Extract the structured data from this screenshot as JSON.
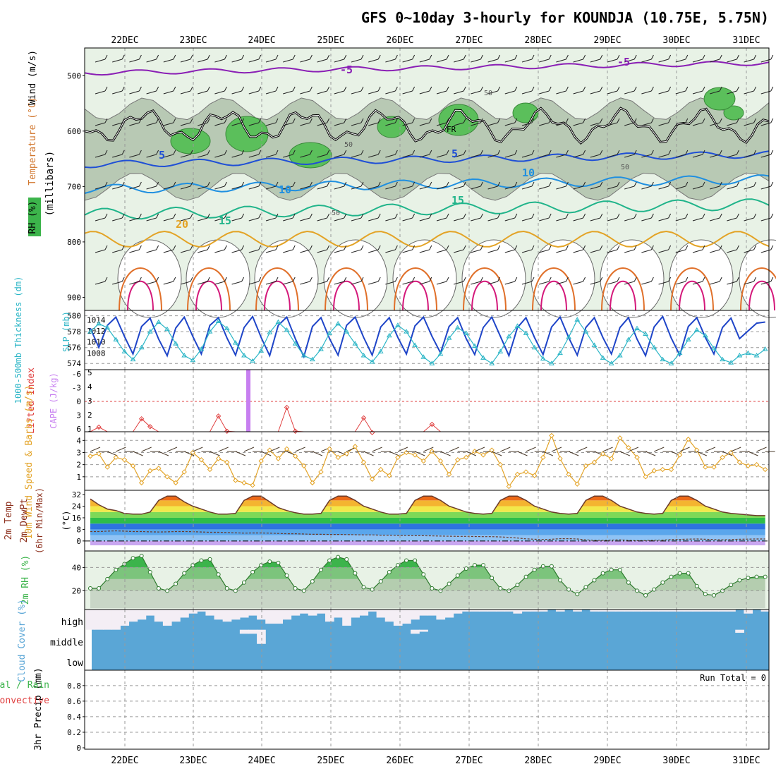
{
  "title": "GFS 0~10day 3-hourly for KOUNDJA (10.75E, 5.75N)",
  "dates": [
    "22DEC",
    "23DEC",
    "24DEC",
    "25DEC",
    "26DEC",
    "27DEC",
    "28DEC",
    "29DEC",
    "30DEC",
    "31DEC"
  ],
  "colors": {
    "frame": "#000000",
    "grid": "#888888",
    "sky": "#5aa6d6",
    "green": "#3cb44b"
  },
  "chart_data": [
    {
      "type": "line",
      "panel": "upper-air cross-section",
      "ylabel_left": "RH (%)   Temperature (°C)Wind (m/s)",
      "ylabel_mid": "(millibars)",
      "yticks": [
        500,
        600,
        700,
        800,
        900
      ],
      "ylim": [
        1000,
        450
      ],
      "isotherm_labels": [
        "-5",
        "-5",
        "5",
        "5",
        "10",
        "10",
        "15",
        "15",
        "20"
      ],
      "fr_label": "FR",
      "rh_labels": [
        "50",
        "50",
        "50",
        "50"
      ]
    },
    {
      "type": "line",
      "panel": "thickness-slp",
      "ylabel_left": "1000-500mb Thickness (dm)",
      "ylabel_right": "SLP (mb)",
      "yticks_left": [
        574,
        576,
        578,
        580
      ],
      "yticks_right": [
        1008,
        1010,
        1012,
        1014
      ],
      "series": [
        {
          "name": "SLP (mb)",
          "values": [
            1012.5,
            1009.0,
            1013.0,
            1014.5,
            1011.0,
            1007.8,
            1012.8,
            1014.3,
            1010.5,
            1007.5,
            1012.5,
            1014.5,
            1011.0,
            1007.8,
            1013.0,
            1014.4,
            1010.7,
            1007.6,
            1012.6,
            1014.6,
            1010.8,
            1007.5,
            1013.0,
            1014.5,
            1010.6,
            1007.3,
            1012.8,
            1014.4,
            1010.6,
            1007.6,
            1013.0,
            1014.5,
            1010.8,
            1007.6,
            1012.7,
            1014.4,
            1010.8,
            1007.8,
            1012.9,
            1014.5,
            1011.0,
            1008.0,
            1012.8,
            1014.4,
            1010.6,
            1007.7,
            1012.6,
            1014.5,
            1011.0,
            1007.5,
            1012.6,
            1014.4,
            1010.8,
            1007.7,
            1012.7,
            1014.5,
            1010.8,
            1007.6,
            1012.6,
            1014.4,
            1010.8,
            1007.8,
            1012.6,
            1014.4,
            1010.5,
            1007.5,
            1012.7,
            1014.6,
            1010.7,
            1007.6,
            1012.8,
            1014.4,
            1010.8,
            1007.8,
            1012.6,
            1014.3,
            1010.6,
            1012.0,
            1013.4,
            1013.6
          ]
        },
        {
          "name": "1000-500mb Thickness (dm)",
          "values": [
            578.0,
            579.0,
            578.5,
            577.0,
            575.5,
            574.5,
            576.0,
            578.0,
            579.2,
            578.3,
            576.5,
            575.0,
            574.4,
            575.8,
            578.0,
            579.3,
            578.4,
            576.6,
            575.0,
            574.3,
            575.6,
            577.9,
            579.2,
            578.2,
            576.5,
            575.0,
            574.5,
            575.8,
            577.8,
            579.0,
            578.0,
            576.5,
            575.0,
            574.2,
            575.5,
            577.5,
            578.8,
            578.0,
            576.3,
            574.8,
            574.0,
            575.2,
            577.2,
            578.5,
            577.8,
            576.2,
            574.7,
            574.0,
            575.5,
            577.4,
            578.7,
            577.8,
            576.0,
            574.6,
            574.0,
            575.3,
            577.3,
            579.5,
            578.0,
            576.3,
            574.7,
            574.0,
            575.0,
            577.0,
            578.4,
            577.7,
            576.0,
            574.5,
            574.0,
            575.3,
            577.0,
            578.2,
            577.5,
            575.9,
            574.5,
            574.1,
            575.0,
            575.3,
            575.0,
            575.8
          ]
        }
      ]
    },
    {
      "type": "bar",
      "panel": "cape-li",
      "ylabel_left": "Lifted Index",
      "ylabel_right": "CAPE (J/kg)",
      "yticks_left": [
        "-6",
        "-3",
        "0",
        "3",
        "6"
      ],
      "yticks_right": [
        "1",
        "2",
        "3",
        "4",
        "5"
      ],
      "cape_bar": {
        "x_step": 18,
        "value": 5.2
      },
      "series": [
        {
          "name": "Lifted Index",
          "values": [
            7,
            5.6,
            7,
            7,
            7,
            7,
            3.8,
            5.5,
            7,
            7,
            7,
            7,
            7,
            7,
            7,
            3.2,
            6.5,
            7,
            7,
            7,
            7,
            7,
            7,
            1.3,
            6.5,
            7,
            7,
            7,
            7,
            7,
            7,
            7,
            3.6,
            6.8,
            7,
            7,
            7,
            7,
            7,
            7,
            5.0,
            7,
            7,
            7,
            7,
            7,
            7,
            7,
            7,
            7,
            7,
            7,
            7,
            7,
            7,
            7,
            7,
            7,
            7,
            7,
            7,
            7,
            7,
            7,
            7,
            7,
            7,
            7,
            7,
            7,
            7,
            7,
            7,
            7,
            7,
            7,
            7,
            7,
            7,
            7
          ]
        }
      ]
    },
    {
      "type": "line",
      "panel": "wind10m",
      "ylabel_left": "10m Wind Speed & Barbs (m/s)",
      "yticks": [
        1,
        2,
        3,
        4
      ],
      "series": [
        {
          "name": "10m Wind Speed (m/s)",
          "values": [
            2.7,
            2.9,
            1.8,
            2.6,
            2.4,
            1.9,
            0.5,
            1.5,
            1.7,
            1.0,
            0.5,
            1.4,
            3.0,
            2.4,
            1.6,
            2.5,
            2.2,
            0.7,
            0.5,
            0.3,
            2.3,
            3.2,
            2.5,
            3.3,
            2.7,
            1.9,
            0.5,
            1.4,
            3.3,
            2.6,
            2.9,
            3.5,
            2.2,
            0.8,
            1.6,
            1.1,
            2.6,
            3.0,
            2.8,
            2.3,
            3.1,
            2.3,
            1.2,
            2.4,
            2.6,
            3.1,
            2.8,
            3.2,
            2.0,
            0.2,
            1.2,
            1.4,
            1.1,
            2.6,
            4.4,
            2.5,
            1.2,
            0.4,
            1.9,
            2.2,
            2.9,
            2.5,
            4.2,
            3.4,
            2.6,
            1.0,
            1.5,
            1.6,
            1.6,
            2.8,
            4.1,
            3.2,
            1.8,
            1.8,
            2.6,
            3.0,
            2.2,
            1.9,
            2.0,
            1.6
          ]
        }
      ]
    },
    {
      "type": "area",
      "panel": "temp2m",
      "ylabel_left": "2m Temp 2m DewPt (6hr Min/Max) (°C)",
      "yticks": [
        0,
        8,
        16,
        24,
        32
      ],
      "series": [
        {
          "name": "2m Temp (°C)",
          "values": [
            29,
            25,
            22,
            21,
            19,
            18.5,
            18.5,
            20,
            28,
            31,
            31,
            27,
            24,
            22,
            20,
            18.5,
            18.5,
            19,
            28,
            31,
            31,
            27,
            23,
            21,
            19.5,
            18.5,
            18.5,
            19,
            28,
            31,
            31,
            28,
            24,
            22,
            20,
            18.5,
            18.5,
            19,
            28,
            31,
            31,
            28,
            24,
            22,
            20,
            19,
            18.5,
            19,
            28,
            31,
            31,
            28,
            24,
            22,
            20,
            19,
            18.5,
            19,
            28,
            31,
            31,
            28,
            24,
            22,
            20,
            19,
            18.5,
            19,
            28,
            31,
            31,
            28,
            24,
            22,
            20,
            19,
            18.5,
            18,
            17.5,
            17.5
          ]
        },
        {
          "name": "2m DewPt (°C)",
          "values": [
            6.5,
            6.5,
            6.8,
            7,
            6.8,
            6.5,
            6.5,
            6.3,
            6.2,
            6.3,
            6.5,
            6.5,
            6.4,
            6.2,
            6.0,
            6.0,
            5.8,
            5.6,
            5.4,
            5.5,
            5.5,
            5.4,
            5.2,
            5.0,
            5.0,
            4.8,
            4.6,
            4.6,
            4.5,
            4.5,
            4.4,
            4.3,
            4.2,
            4.2,
            4.0,
            4.0,
            3.8,
            3.7,
            3.6,
            3.6,
            3.5,
            3.4,
            3.3,
            3.2,
            3.2,
            3.1,
            3.0,
            3.0,
            2.8,
            2.5,
            2.0,
            1.5,
            1.2,
            1.0,
            1.2,
            1.6,
            1.6,
            1.4,
            0.8,
            0.4,
            0.4,
            0.6,
            0.8,
            0.4,
            0.2,
            0.3,
            0.5,
            0.6,
            1.0,
            1.1,
            1.3,
            1.4,
            1.2,
            1.0,
            0.8,
            1.0,
            1.2,
            1.3,
            1.4,
            1.4
          ]
        }
      ]
    },
    {
      "type": "area",
      "panel": "rh2m",
      "ylabel_left": "2m RH (%)",
      "yticks": [
        20,
        40
      ],
      "series": [
        {
          "name": "2m RH (%)",
          "values": [
            22,
            22,
            30,
            38,
            43,
            48,
            50,
            36,
            22,
            20,
            26,
            35,
            42,
            46,
            47,
            34,
            22,
            20,
            27,
            36,
            42,
            45,
            44,
            33,
            22,
            20,
            28,
            38,
            46,
            49,
            47,
            35,
            23,
            21,
            28,
            36,
            42,
            46,
            46,
            34,
            22,
            20,
            26,
            33,
            39,
            42,
            42,
            31,
            22,
            20,
            25,
            32,
            38,
            41,
            41,
            29,
            21,
            17,
            23,
            29,
            35,
            38,
            38,
            27,
            20,
            16,
            21,
            27,
            32,
            35,
            35,
            24,
            17,
            16,
            20,
            25,
            29,
            31,
            32,
            32
          ]
        }
      ]
    },
    {
      "type": "bar",
      "panel": "cloud",
      "ylabel_left": "Cloud Cover (%)",
      "level_labels": [
        "high",
        "middle",
        "low"
      ],
      "series": [
        {
          "name": "high cloud clear",
          "values": [
            1,
            1,
            1,
            1,
            0.8,
            0.6,
            0.5,
            0.3,
            0.6,
            0.8,
            0.6,
            0.4,
            0.2,
            0.1,
            0.3,
            0.5,
            0.6,
            0.5,
            0.4,
            0.3,
            0.5,
            0.7,
            0.7,
            0.5,
            0.3,
            0.2,
            0.3,
            0.2,
            0.6,
            0.4,
            0.8,
            0.4,
            0.3,
            0.1,
            0.4,
            0.6,
            0.8,
            0.7,
            0.5,
            0.3,
            0.3,
            0.5,
            0.4,
            0.2,
            0.1,
            0.1,
            0.1,
            0.1,
            0.1,
            0.1,
            0.2,
            0.1,
            0.1,
            0.1,
            0,
            0.1,
            0,
            0.1,
            0,
            0.1,
            0.1,
            0.1,
            0.1,
            0.1,
            0.1,
            0.1,
            0.1,
            0.1,
            0.1,
            0.1,
            0.1,
            0.1,
            0.1,
            0.1,
            0.1,
            0.1,
            0,
            0.2,
            0,
            0.1
          ]
        },
        {
          "name": "middle cloud clear",
          "values": [
            0,
            0,
            0,
            0,
            0,
            0,
            0,
            0,
            0,
            0,
            0,
            0,
            0,
            0,
            0,
            0,
            0,
            0,
            0.2,
            0.2,
            0.7,
            0,
            0,
            0,
            0,
            0,
            0,
            0,
            0,
            0,
            0,
            0,
            0,
            0,
            0,
            0,
            0,
            0,
            0.2,
            0.1,
            0,
            0,
            0,
            0,
            0,
            0,
            0,
            0,
            0,
            0,
            0,
            0,
            0,
            0,
            0,
            0,
            0,
            0,
            0,
            0,
            0,
            0,
            0,
            0,
            0,
            0,
            0,
            0,
            0,
            0,
            0,
            0,
            0,
            0,
            0,
            0,
            0.15,
            0,
            0,
            0
          ]
        }
      ]
    },
    {
      "type": "bar",
      "panel": "precip",
      "ylabel_left": "3hr Precip (mm)",
      "legend_left": "Total / Rain",
      "legend_left2": "Convective",
      "yticks": [
        "0",
        "0.2",
        "0.4",
        "0.6",
        "0.8"
      ],
      "run_total_label": "Run Total = 0",
      "values": []
    }
  ]
}
